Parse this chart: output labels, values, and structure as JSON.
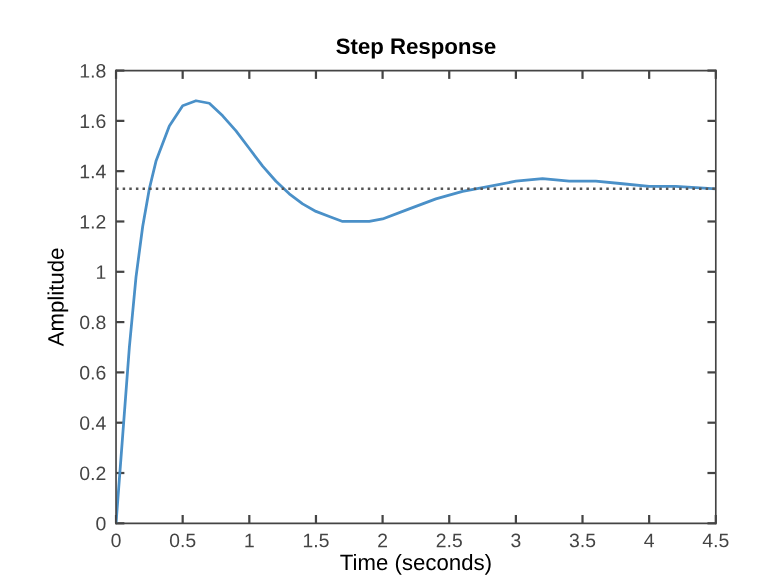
{
  "chart_data": {
    "type": "line",
    "title": "Step Response",
    "xlabel": "Time (seconds)",
    "ylabel": "Amplitude",
    "x": [
      0,
      0.05,
      0.1,
      0.15,
      0.2,
      0.25,
      0.3,
      0.4,
      0.5,
      0.6,
      0.7,
      0.8,
      0.9,
      1.0,
      1.1,
      1.2,
      1.3,
      1.4,
      1.5,
      1.6,
      1.7,
      1.8,
      1.9,
      2.0,
      2.2,
      2.4,
      2.6,
      2.8,
      3.0,
      3.2,
      3.4,
      3.6,
      3.8,
      4.0,
      4.2,
      4.5
    ],
    "series": [
      {
        "color": "#4a90c8",
        "values": [
          0,
          0.35,
          0.7,
          0.98,
          1.18,
          1.33,
          1.44,
          1.58,
          1.66,
          1.68,
          1.67,
          1.62,
          1.56,
          1.49,
          1.42,
          1.36,
          1.31,
          1.27,
          1.24,
          1.22,
          1.2,
          1.2,
          1.2,
          1.21,
          1.25,
          1.29,
          1.32,
          1.34,
          1.36,
          1.37,
          1.36,
          1.36,
          1.35,
          1.34,
          1.34,
          1.33
        ]
      }
    ],
    "ref_lines": [
      {
        "axis": "y",
        "value": 1.33,
        "label": null,
        "color": "#555555",
        "line_style": "dotted"
      }
    ],
    "xlim": [
      0,
      4.5
    ],
    "ylim": [
      0,
      1.8
    ],
    "xticks": [
      0,
      0.5,
      1,
      1.5,
      2,
      2.5,
      3,
      3.5,
      4,
      4.5
    ],
    "yticks": [
      0,
      0.2,
      0.4,
      0.6,
      0.8,
      1,
      1.2,
      1.4,
      1.6,
      1.8
    ],
    "grid": false,
    "legend": false,
    "marker": "none",
    "line_style": "solid"
  }
}
